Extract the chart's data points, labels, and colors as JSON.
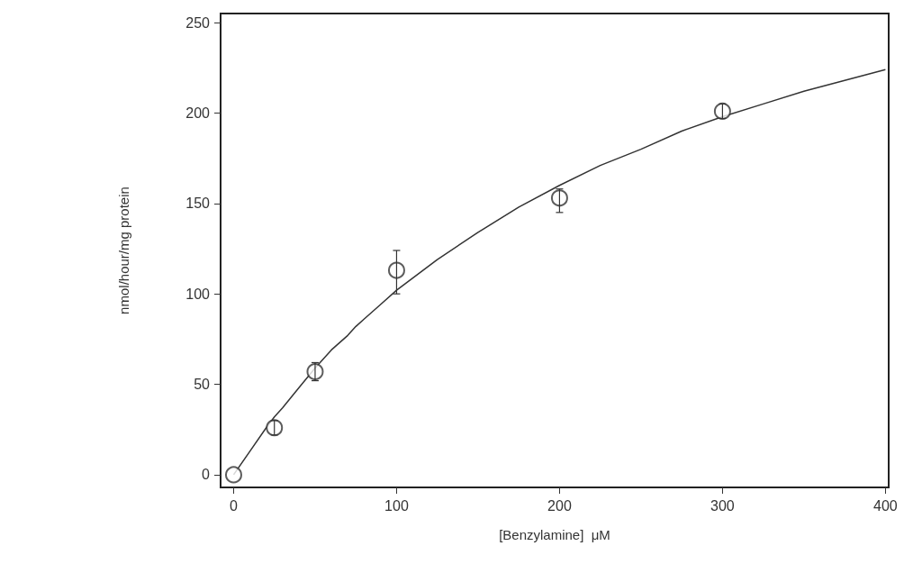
{
  "chart_data": {
    "type": "scatter",
    "xlabel": "[Benzylamine]  μM",
    "ylabel": "nmol/hour/mg protein",
    "xlim": [
      -8,
      402
    ],
    "xticks": [
      0,
      100,
      200,
      300,
      400
    ],
    "ylim": [
      -7,
      255
    ],
    "yticks": [
      0,
      50,
      100,
      150,
      200,
      250
    ],
    "grid": false,
    "series": [
      {
        "color": "#333333",
        "marker": "circle",
        "x": [
          0,
          25,
          50,
          100,
          200,
          300
        ],
        "values": [
          0,
          26,
          57,
          113,
          153,
          201
        ],
        "errors": [
          null,
          4,
          5,
          [
            100,
            124
          ],
          [
            145,
            158
          ],
          [
            197,
            205
          ]
        ]
      },
      {
        "type": "line",
        "color": "#333333",
        "marker": "none",
        "line_style": "solid",
        "x": [
          0,
          10,
          20,
          25,
          30,
          40,
          50,
          60,
          70,
          75,
          80,
          90,
          100,
          125,
          150,
          175,
          200,
          225,
          250,
          275,
          300,
          325,
          350,
          375,
          400
        ],
        "values": [
          0,
          13,
          26,
          32,
          37,
          48,
          59,
          69,
          77,
          82,
          86,
          94,
          102,
          119,
          134,
          148,
          160,
          171,
          180,
          190,
          198,
          205,
          212,
          218,
          224
        ]
      }
    ]
  }
}
